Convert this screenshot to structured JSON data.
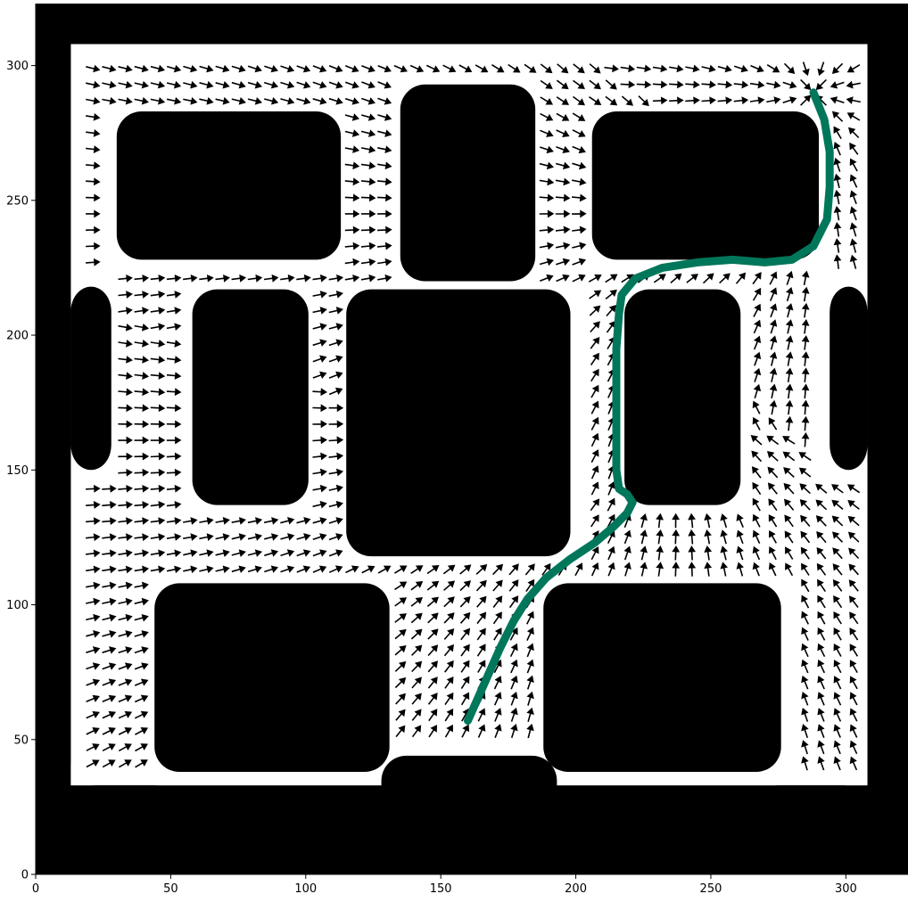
{
  "chart_data": {
    "type": "vector-field",
    "title": "",
    "xlabel": "",
    "ylabel": "",
    "xlim": [
      0,
      323
    ],
    "ylim": [
      0,
      323
    ],
    "xticks": [
      0,
      50,
      100,
      150,
      200,
      250,
      300
    ],
    "yticks": [
      0,
      50,
      100,
      150,
      200,
      250,
      300
    ],
    "grid": false,
    "legend": "none",
    "background_color": "#000000",
    "free_space_color": "#ffffff",
    "arrow_color": "#000000",
    "path_color": "#00775a",
    "free_space_regions": [
      [
        13,
        33,
        308,
        308
      ]
    ],
    "obstacles": [
      [
        0,
        0,
        13,
        33
      ],
      [
        0,
        33,
        13,
        323
      ],
      [
        308,
        0,
        323,
        323
      ],
      [
        0,
        308,
        323,
        323
      ],
      [
        13,
        33,
        53,
        12
      ],
      [
        128,
        33,
        193,
        12
      ],
      [
        266,
        33,
        308,
        12
      ],
      [
        13,
        150,
        28,
        218
      ],
      [
        294,
        150,
        308,
        218
      ],
      [
        30,
        228,
        113,
        283
      ],
      [
        135,
        220,
        185,
        293
      ],
      [
        206,
        228,
        290,
        283
      ],
      [
        58,
        137,
        101,
        217
      ],
      [
        115,
        118,
        198,
        217
      ],
      [
        218,
        137,
        261,
        217
      ],
      [
        44,
        38,
        131,
        108
      ],
      [
        188,
        38,
        276,
        108
      ],
      [
        128,
        12,
        193,
        44
      ]
    ],
    "path": [
      [
        160,
        57
      ],
      [
        164,
        66
      ],
      [
        168,
        75
      ],
      [
        172,
        84
      ],
      [
        177,
        94
      ],
      [
        182,
        102
      ],
      [
        189,
        110
      ],
      [
        198,
        117
      ],
      [
        207,
        123
      ],
      [
        214,
        129
      ],
      [
        219,
        134
      ],
      [
        221,
        138
      ],
      [
        219,
        141
      ],
      [
        216,
        143
      ],
      [
        215,
        150
      ],
      [
        215,
        165
      ],
      [
        215,
        180
      ],
      [
        215,
        195
      ],
      [
        216,
        208
      ],
      [
        217,
        215
      ],
      [
        222,
        221
      ],
      [
        232,
        225
      ],
      [
        245,
        227
      ],
      [
        258,
        228
      ],
      [
        270,
        227
      ],
      [
        280,
        228
      ],
      [
        288,
        233
      ],
      [
        293,
        243
      ],
      [
        294,
        255
      ],
      [
        294,
        268
      ],
      [
        292,
        280
      ],
      [
        288,
        290
      ]
    ],
    "field_goal": [
      288,
      290
    ]
  }
}
